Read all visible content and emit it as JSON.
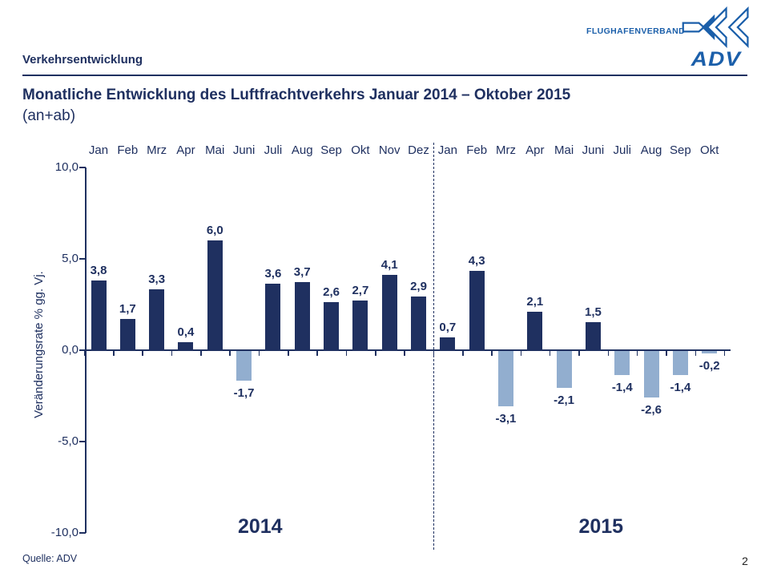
{
  "header": {
    "section_title": "Verkehrsentwicklung",
    "brand_text": "FLUGHAFENVERBAND",
    "brand_name": "ADV"
  },
  "title": {
    "line1": "Monatliche Entwicklung des Luftfrachtverkehrs Januar 2014 – Oktober 2015",
    "line2": "(an+ab)"
  },
  "footer": {
    "source": "Quelle: ADV",
    "page_number": "2"
  },
  "chart_data": {
    "type": "bar",
    "ylabel": "Veränderungsrate % gg. Vj.",
    "ylim": [
      -10,
      10
    ],
    "yticks": [
      {
        "value": 10,
        "label": "10,0"
      },
      {
        "value": 5,
        "label": "5,0"
      },
      {
        "value": 0,
        "label": "0,0"
      },
      {
        "value": -5,
        "label": "-5,0"
      },
      {
        "value": -10,
        "label": "-10,0"
      }
    ],
    "categories": [
      "Jan",
      "Feb",
      "Mrz",
      "Apr",
      "Mai",
      "Juni",
      "Juli",
      "Aug",
      "Sep",
      "Okt",
      "Nov",
      "Dez",
      "Jan",
      "Feb",
      "Mrz",
      "Apr",
      "Mai",
      "Juni",
      "Juli",
      "Aug",
      "Sep",
      "Okt"
    ],
    "values": [
      3.8,
      1.7,
      3.3,
      0.4,
      6.0,
      -1.7,
      3.6,
      3.7,
      2.6,
      2.7,
      4.1,
      2.9,
      0.7,
      4.3,
      -3.1,
      2.1,
      -2.1,
      1.5,
      -1.4,
      -2.6,
      -1.4,
      -0.2
    ],
    "value_labels": [
      "3,8",
      "1,7",
      "3,3",
      "0,4",
      "6,0",
      "-1,7",
      "3,6",
      "3,7",
      "2,6",
      "2,7",
      "4,1",
      "2,9",
      "0,7",
      "4,3",
      "-3,1",
      "2,1",
      "-2,1",
      "1,5",
      "-1,4",
      "-2,6",
      "-1,4",
      "-0,2"
    ],
    "group_labels": [
      {
        "label": "2014",
        "start": 0,
        "end": 11
      },
      {
        "label": "2015",
        "start": 12,
        "end": 21
      }
    ],
    "separator_after_index": 11,
    "grid": false,
    "legend": "none",
    "colors": {
      "positive": "#1F3060",
      "negative": "#92AECF",
      "axis": "#1F3060"
    }
  }
}
